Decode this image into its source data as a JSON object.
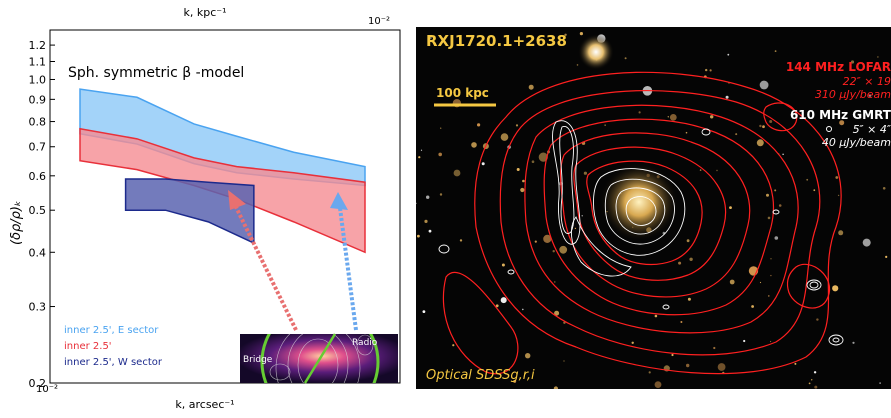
{
  "left_panel": {
    "top_axis_label": "k, kpc⁻¹",
    "top_tick": "10⁻²",
    "bottom_axis_label": "k, arcsec⁻¹",
    "bottom_tick": "10⁻²",
    "ylabel": "(δρ/ρ)ₖ",
    "title": "Sph. symmetric β -model",
    "inset_labels": {
      "radio": "Radio",
      "bridge": "Bridge"
    },
    "legend": [
      {
        "label": "inner 2.5', E sector",
        "color": "#4aa3f0"
      },
      {
        "label": "inner 2.5'",
        "color": "#e8303a"
      },
      {
        "label": "inner 2.5', W sector",
        "color": "#1c2a8c"
      }
    ]
  },
  "chart_data": {
    "type": "area",
    "yscale": "log",
    "ylim": [
      0.2,
      1.3
    ],
    "yticks": [
      "0.2",
      "0.3",
      "0.4",
      "0.5",
      "0.6",
      "0.7",
      "0.8",
      "0.9",
      "1.0",
      "1.1",
      "1.2"
    ],
    "series": [
      {
        "name": "inner 2.5', E sector",
        "color": "#4aa3f0",
        "x": [
          0,
          0.2,
          0.4,
          0.55,
          0.75,
          1.0
        ],
        "upper": [
          0.95,
          0.91,
          0.79,
          0.74,
          0.68,
          0.63
        ],
        "lower": [
          0.75,
          0.71,
          0.64,
          0.61,
          0.59,
          0.57
        ]
      },
      {
        "name": "inner 2.5'",
        "color": "#e8303a",
        "x": [
          0,
          0.2,
          0.4,
          0.55,
          0.75,
          1.0
        ],
        "upper": [
          0.77,
          0.73,
          0.66,
          0.63,
          0.61,
          0.58
        ],
        "lower": [
          0.65,
          0.62,
          0.57,
          0.53,
          0.47,
          0.4
        ]
      },
      {
        "name": "inner 2.5', W sector",
        "color": "#1c2a8c",
        "x": [
          0.16,
          0.3,
          0.45,
          0.61
        ],
        "upper": [
          0.59,
          0.59,
          0.58,
          0.57
        ],
        "lower": [
          0.5,
          0.5,
          0.47,
          0.42
        ]
      }
    ]
  },
  "right_panel": {
    "title": "RXJ1720.1+2638",
    "scale_bar": "100 kpc",
    "lofar_label": "144 MHz LOFAR",
    "lofar_beam": "22″ × 19",
    "lofar_rms": "310 μJy/beam",
    "gmrt_label": "610 MHz GMRT",
    "gmrt_beam": "5″ × 4″",
    "gmrt_rms": "40 μJy/beam",
    "optical_label": "Optical SDSSg,r,i",
    "colors": {
      "lofar": "#ff2020",
      "gmrt": "#ffffff",
      "title": "#f5c842",
      "optical": "#f5c842"
    }
  }
}
